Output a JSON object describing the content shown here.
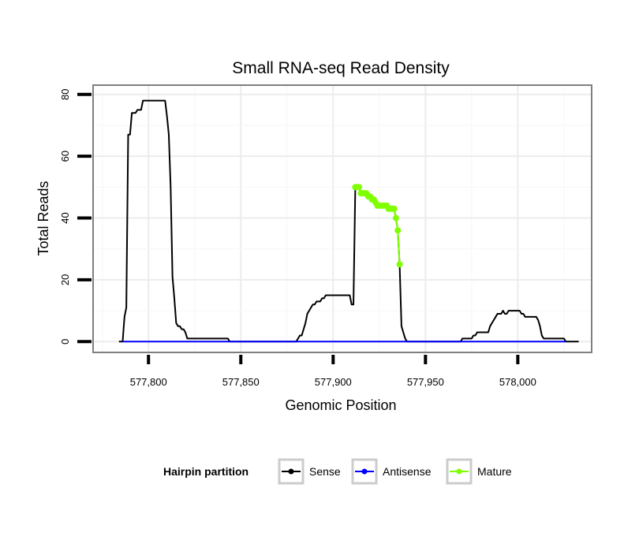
{
  "chart_data": {
    "type": "line",
    "title": "Small RNA-seq Read Density",
    "xlabel": "Genomic Position",
    "ylabel": "Total Reads",
    "xlim": [
      577770,
      578040
    ],
    "ylim": [
      -3.5,
      83
    ],
    "x_ticks": [
      577800,
      577850,
      577900,
      577950,
      578000
    ],
    "x_tick_labels": [
      "577,800",
      "577,850",
      "577,900",
      "577,950",
      "578,000"
    ],
    "y_ticks": [
      0,
      20,
      40,
      60,
      80
    ],
    "y_tick_labels": [
      "0",
      "20",
      "40",
      "60",
      "80"
    ],
    "grid": true,
    "legend": {
      "title": "Hairpin partition",
      "position": "bottom",
      "entries": [
        {
          "label": "Sense",
          "color": "#000000"
        },
        {
          "label": "Antisense",
          "color": "#0000ff"
        },
        {
          "label": "Mature",
          "color": "#7fff00"
        }
      ]
    },
    "series": [
      {
        "name": "Sense",
        "color": "#000000",
        "points": [
          [
            577784,
            0
          ],
          [
            577786,
            0
          ],
          [
            577787,
            8
          ],
          [
            577788,
            11
          ],
          [
            577789,
            67
          ],
          [
            577790,
            67
          ],
          [
            577791,
            74
          ],
          [
            577792,
            74
          ],
          [
            577793,
            74
          ],
          [
            577794,
            75
          ],
          [
            577795,
            75
          ],
          [
            577796,
            75
          ],
          [
            577797,
            78
          ],
          [
            577798,
            78
          ],
          [
            577799,
            78
          ],
          [
            577800,
            78
          ],
          [
            577801,
            78
          ],
          [
            577802,
            78
          ],
          [
            577803,
            78
          ],
          [
            577804,
            78
          ],
          [
            577805,
            78
          ],
          [
            577806,
            78
          ],
          [
            577807,
            78
          ],
          [
            577808,
            78
          ],
          [
            577809,
            78
          ],
          [
            577810,
            73
          ],
          [
            577811,
            67
          ],
          [
            577812,
            50
          ],
          [
            577813,
            21
          ],
          [
            577814,
            14
          ],
          [
            577815,
            6
          ],
          [
            577816,
            5
          ],
          [
            577817,
            5
          ],
          [
            577818,
            4
          ],
          [
            577819,
            4
          ],
          [
            577820,
            3
          ],
          [
            577821,
            1
          ],
          [
            577822,
            1
          ],
          [
            577825,
            1
          ],
          [
            577830,
            1
          ],
          [
            577835,
            1
          ],
          [
            577840,
            1
          ],
          [
            577843,
            1
          ],
          [
            577844,
            0
          ],
          [
            577850,
            0
          ],
          [
            577860,
            0
          ],
          [
            577870,
            0
          ],
          [
            577880,
            0
          ],
          [
            577881,
            1
          ],
          [
            577882,
            2
          ],
          [
            577883,
            2
          ],
          [
            577884,
            4
          ],
          [
            577885,
            6
          ],
          [
            577886,
            9
          ],
          [
            577887,
            10
          ],
          [
            577888,
            11
          ],
          [
            577889,
            12
          ],
          [
            577890,
            12
          ],
          [
            577891,
            13
          ],
          [
            577892,
            13
          ],
          [
            577893,
            13
          ],
          [
            577894,
            14
          ],
          [
            577895,
            14
          ],
          [
            577896,
            15
          ],
          [
            577897,
            15
          ],
          [
            577898,
            15
          ],
          [
            577899,
            15
          ],
          [
            577900,
            15
          ],
          [
            577901,
            15
          ],
          [
            577902,
            15
          ],
          [
            577903,
            15
          ],
          [
            577904,
            15
          ],
          [
            577905,
            15
          ],
          [
            577906,
            15
          ],
          [
            577907,
            15
          ],
          [
            577908,
            15
          ],
          [
            577909,
            15
          ],
          [
            577910,
            12
          ],
          [
            577911,
            12
          ],
          [
            577912,
            50
          ],
          [
            577913,
            50
          ],
          [
            577914,
            50
          ],
          [
            577915,
            48
          ],
          [
            577916,
            48
          ],
          [
            577917,
            48
          ],
          [
            577918,
            48
          ],
          [
            577919,
            47
          ],
          [
            577920,
            47
          ],
          [
            577921,
            46
          ],
          [
            577922,
            46
          ],
          [
            577923,
            45
          ],
          [
            577924,
            44
          ],
          [
            577925,
            44
          ],
          [
            577926,
            44
          ],
          [
            577927,
            44
          ],
          [
            577928,
            44
          ],
          [
            577929,
            44
          ],
          [
            577930,
            43
          ],
          [
            577931,
            43
          ],
          [
            577932,
            43
          ],
          [
            577933,
            43
          ],
          [
            577934,
            40
          ],
          [
            577935,
            36
          ],
          [
            577936,
            25
          ],
          [
            577937,
            5
          ],
          [
            577938,
            3
          ],
          [
            577939,
            1
          ],
          [
            577940,
            0
          ],
          [
            577950,
            0
          ],
          [
            577960,
            0
          ],
          [
            577969,
            0
          ],
          [
            577970,
            1
          ],
          [
            577975,
            1
          ],
          [
            577976,
            2
          ],
          [
            577977,
            2
          ],
          [
            577978,
            3
          ],
          [
            577979,
            3
          ],
          [
            577980,
            3
          ],
          [
            577981,
            3
          ],
          [
            577982,
            3
          ],
          [
            577983,
            3
          ],
          [
            577984,
            3
          ],
          [
            577985,
            5
          ],
          [
            577986,
            6
          ],
          [
            577987,
            7
          ],
          [
            577988,
            8
          ],
          [
            577989,
            9
          ],
          [
            577990,
            9
          ],
          [
            577991,
            9
          ],
          [
            577992,
            10
          ],
          [
            577993,
            9
          ],
          [
            577994,
            9
          ],
          [
            577995,
            10
          ],
          [
            577996,
            10
          ],
          [
            577997,
            10
          ],
          [
            577998,
            10
          ],
          [
            577999,
            10
          ],
          [
            578000,
            10
          ],
          [
            578001,
            10
          ],
          [
            578002,
            9
          ],
          [
            578003,
            9
          ],
          [
            578004,
            8
          ],
          [
            578005,
            8
          ],
          [
            578006,
            8
          ],
          [
            578007,
            8
          ],
          [
            578008,
            8
          ],
          [
            578009,
            8
          ],
          [
            578010,
            8
          ],
          [
            578011,
            7
          ],
          [
            578012,
            5
          ],
          [
            578013,
            2
          ],
          [
            578014,
            1
          ],
          [
            578015,
            1
          ],
          [
            578020,
            1
          ],
          [
            578025,
            1
          ],
          [
            578026,
            0
          ],
          [
            578030,
            0
          ],
          [
            578033,
            0
          ]
        ]
      },
      {
        "name": "Antisense",
        "color": "#0000ff",
        "points": [
          [
            577786,
            0
          ],
          [
            578026,
            0
          ]
        ]
      },
      {
        "name": "Mature",
        "color": "#7fff00",
        "points": [
          [
            577912,
            50
          ],
          [
            577913,
            50
          ],
          [
            577914,
            50
          ],
          [
            577915,
            48
          ],
          [
            577916,
            48
          ],
          [
            577917,
            48
          ],
          [
            577918,
            48
          ],
          [
            577919,
            47
          ],
          [
            577920,
            47
          ],
          [
            577921,
            46
          ],
          [
            577922,
            46
          ],
          [
            577923,
            45
          ],
          [
            577924,
            44
          ],
          [
            577925,
            44
          ],
          [
            577926,
            44
          ],
          [
            577927,
            44
          ],
          [
            577928,
            44
          ],
          [
            577929,
            44
          ],
          [
            577930,
            43
          ],
          [
            577931,
            43
          ],
          [
            577932,
            43
          ],
          [
            577933,
            43
          ],
          [
            577934,
            40
          ],
          [
            577935,
            36
          ],
          [
            577936,
            25
          ]
        ]
      }
    ]
  }
}
